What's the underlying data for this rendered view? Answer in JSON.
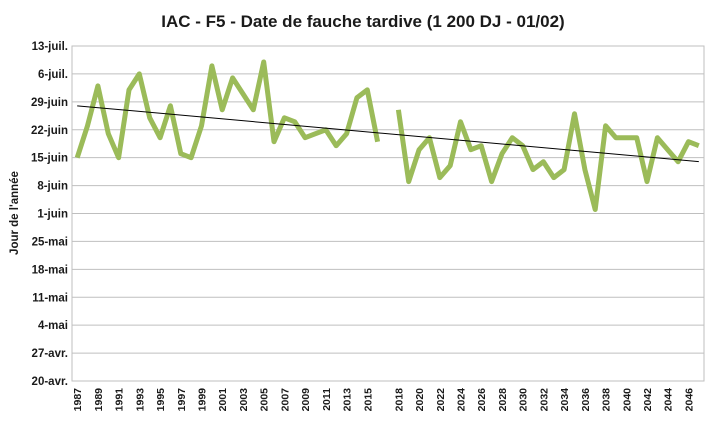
{
  "chart_data": {
    "type": "line",
    "title": "IAC - F5 - Date de fauche tardive (1 200 DJ - 01/02)",
    "ylabel": "Jour de l'année",
    "xlabel": "",
    "yticks": [
      "20-avr.",
      "27-avr.",
      "4-mai",
      "11-mai",
      "18-mai",
      "25-mai",
      "1-juin",
      "8-juin",
      "15-juin",
      "22-juin",
      "29-juin",
      "6-juil.",
      "13-juil."
    ],
    "ylim": [
      "20-avr.",
      "13-juil."
    ],
    "xticks": [
      "1987",
      "1989",
      "1991",
      "1993",
      "1995",
      "1997",
      "1999",
      "2001",
      "2003",
      "2005",
      "2007",
      "2009",
      "2011",
      "2013",
      "2015",
      "2018",
      "2020",
      "2022",
      "2024",
      "2026",
      "2028",
      "2030",
      "2032",
      "2034",
      "2036",
      "2038",
      "2040",
      "2042",
      "2044",
      "2046"
    ],
    "grid": true,
    "series_color": "#9bbb59",
    "trend_color": "#000000",
    "series": [
      {
        "values": [
          {
            "x": 1987,
            "y": "15-juin"
          },
          {
            "x": 1988,
            "y": "23-juin"
          },
          {
            "x": 1989,
            "y": "3-juil."
          },
          {
            "x": 1990,
            "y": "21-juin"
          },
          {
            "x": 1991,
            "y": "15-juin"
          },
          {
            "x": 1992,
            "y": "2-juil."
          },
          {
            "x": 1993,
            "y": "6-juil."
          },
          {
            "x": 1994,
            "y": "25-juin"
          },
          {
            "x": 1995,
            "y": "20-juin"
          },
          {
            "x": 1996,
            "y": "28-juin"
          },
          {
            "x": 1997,
            "y": "16-juin"
          },
          {
            "x": 1998,
            "y": "15-juin"
          },
          {
            "x": 1999,
            "y": "23-juin"
          },
          {
            "x": 2000,
            "y": "8-juil."
          },
          {
            "x": 2001,
            "y": "27-juin"
          },
          {
            "x": 2002,
            "y": "5-juil."
          },
          {
            "x": 2003,
            "y": "1-juil."
          },
          {
            "x": 2004,
            "y": "27-juin"
          },
          {
            "x": 2005,
            "y": "9-juil."
          },
          {
            "x": 2006,
            "y": "19-juin"
          },
          {
            "x": 2007,
            "y": "25-juin"
          },
          {
            "x": 2008,
            "y": "24-juin"
          },
          {
            "x": 2009,
            "y": "20-juin"
          },
          {
            "x": 2010,
            "y": "21-juin"
          },
          {
            "x": 2011,
            "y": "22-juin"
          },
          {
            "x": 2012,
            "y": "18-juin"
          },
          {
            "x": 2013,
            "y": "21-juin"
          },
          {
            "x": 2014,
            "y": "30-juin"
          },
          {
            "x": 2015,
            "y": "2-juil."
          },
          {
            "x": 2016,
            "y": "19-juin"
          },
          {
            "x": 2017,
            "y": null
          },
          {
            "x": 2018,
            "y": "27-juin"
          },
          {
            "x": 2019,
            "y": "9-juin"
          },
          {
            "x": 2020,
            "y": "17-juin"
          },
          {
            "x": 2021,
            "y": "20-juin"
          },
          {
            "x": 2022,
            "y": "10-juin"
          },
          {
            "x": 2023,
            "y": "13-juin"
          },
          {
            "x": 2024,
            "y": "24-juin"
          },
          {
            "x": 2025,
            "y": "17-juin"
          },
          {
            "x": 2026,
            "y": "18-juin"
          },
          {
            "x": 2027,
            "y": "9-juin"
          },
          {
            "x": 2028,
            "y": "16-juin"
          },
          {
            "x": 2029,
            "y": "20-juin"
          },
          {
            "x": 2030,
            "y": "18-juin"
          },
          {
            "x": 2031,
            "y": "12-juin"
          },
          {
            "x": 2032,
            "y": "14-juin"
          },
          {
            "x": 2033,
            "y": "10-juin"
          },
          {
            "x": 2034,
            "y": "12-juin"
          },
          {
            "x": 2035,
            "y": "26-juin"
          },
          {
            "x": 2036,
            "y": "12-juin"
          },
          {
            "x": 2037,
            "y": "2-juin"
          },
          {
            "x": 2038,
            "y": "23-juin"
          },
          {
            "x": 2039,
            "y": "20-juin"
          },
          {
            "x": 2040,
            "y": "20-juin"
          },
          {
            "x": 2041,
            "y": "20-juin"
          },
          {
            "x": 2042,
            "y": "9-juin"
          },
          {
            "x": 2043,
            "y": "20-juin"
          },
          {
            "x": 2044,
            "y": "17-juin"
          },
          {
            "x": 2045,
            "y": "14-juin"
          },
          {
            "x": 2046,
            "y": "19-juin"
          },
          {
            "x": 2047,
            "y": "18-juin"
          }
        ]
      }
    ],
    "trendline": {
      "type": "linear",
      "start": {
        "x": 1987,
        "y": "28-juin"
      },
      "end": {
        "x": 2047,
        "y": "14-juin"
      }
    }
  }
}
